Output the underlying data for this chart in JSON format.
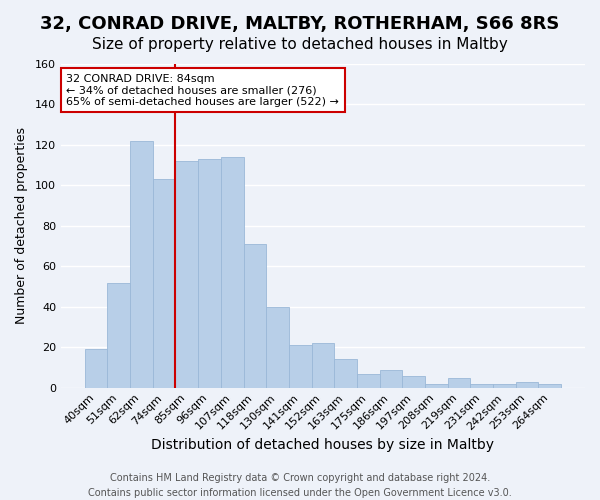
{
  "title": "32, CONRAD DRIVE, MALTBY, ROTHERHAM, S66 8RS",
  "subtitle": "Size of property relative to detached houses in Maltby",
  "xlabel": "Distribution of detached houses by size in Maltby",
  "ylabel": "Number of detached properties",
  "bar_labels": [
    "40sqm",
    "51sqm",
    "62sqm",
    "74sqm",
    "85sqm",
    "96sqm",
    "107sqm",
    "118sqm",
    "130sqm",
    "141sqm",
    "152sqm",
    "163sqm",
    "175sqm",
    "186sqm",
    "197sqm",
    "208sqm",
    "219sqm",
    "231sqm",
    "242sqm",
    "253sqm",
    "264sqm"
  ],
  "bar_values": [
    19,
    52,
    122,
    103,
    112,
    113,
    114,
    71,
    40,
    21,
    22,
    14,
    7,
    9,
    6,
    2,
    5,
    2,
    2,
    3,
    2
  ],
  "bar_color": "#b8cfe8",
  "bar_edge_color": "#9ab8d8",
  "background_color": "#eef2f9",
  "grid_color": "#ffffff",
  "vline_index": 4,
  "vline_color": "#cc0000",
  "annotation_line1": "32 CONRAD DRIVE: 84sqm",
  "annotation_line2": "← 34% of detached houses are smaller (276)",
  "annotation_line3": "65% of semi-detached houses are larger (522) →",
  "annotation_box_color": "#ffffff",
  "annotation_box_edge_color": "#cc0000",
  "ylim": [
    0,
    160
  ],
  "yticks": [
    0,
    20,
    40,
    60,
    80,
    100,
    120,
    140,
    160
  ],
  "footer_text": "Contains HM Land Registry data © Crown copyright and database right 2024.\nContains public sector information licensed under the Open Government Licence v3.0.",
  "title_fontsize": 13,
  "subtitle_fontsize": 11,
  "xlabel_fontsize": 10,
  "ylabel_fontsize": 9,
  "tick_fontsize": 8,
  "footer_fontsize": 7
}
